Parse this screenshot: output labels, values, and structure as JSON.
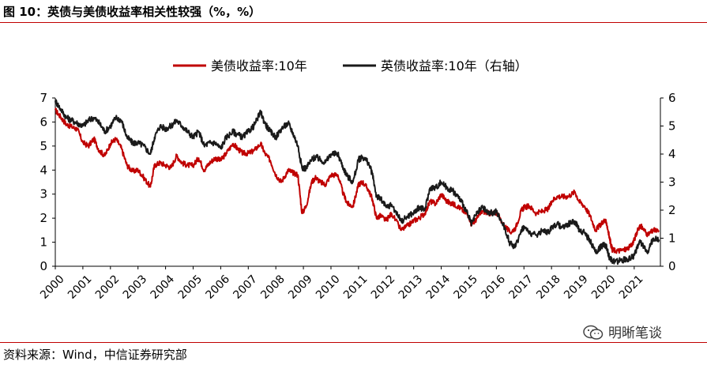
{
  "figure": {
    "title": "图 10：英债与美债收益率相关性较强（%，%）",
    "source": "资料来源：Wind，中信证券研究部",
    "watermark": "明晰笔谈",
    "watermark_icon": "wechat-icon"
  },
  "colors": {
    "us10y": "#c00000",
    "uk10y": "#1a1a1a",
    "rule": "#c00000"
  },
  "chart_data": {
    "type": "line",
    "title": "",
    "xlabel": "",
    "ylabel": "",
    "ylim": [
      0,
      7
    ],
    "y2lim": [
      0,
      6
    ],
    "xlim": [
      2000.0,
      2021.95
    ],
    "y_ticks": [
      0,
      1,
      2,
      3,
      4,
      5,
      6,
      7
    ],
    "y2_ticks": [
      0,
      1,
      2,
      3,
      4,
      5,
      6
    ],
    "x_ticks": [
      "2000",
      "2001",
      "2002",
      "2003",
      "2004",
      "2005",
      "2006",
      "2007",
      "2008",
      "2009",
      "2010",
      "2011",
      "2012",
      "2013",
      "2014",
      "2015",
      "2016",
      "2017",
      "2018",
      "2019",
      "2020",
      "2021"
    ],
    "legend": "top-center",
    "grid": false,
    "series": [
      {
        "name": "美债收益率:10年",
        "axis": "left",
        "x": [
          2000.0,
          2000.2,
          2000.4,
          2000.6,
          2000.8,
          2001.0,
          2001.2,
          2001.4,
          2001.6,
          2001.8,
          2002.0,
          2002.2,
          2002.4,
          2002.6,
          2002.8,
          2003.0,
          2003.2,
          2003.45,
          2003.6,
          2003.8,
          2004.0,
          2004.2,
          2004.4,
          2004.6,
          2004.8,
          2005.0,
          2005.2,
          2005.4,
          2005.6,
          2005.8,
          2006.0,
          2006.2,
          2006.45,
          2006.6,
          2006.8,
          2007.0,
          2007.2,
          2007.45,
          2007.6,
          2007.8,
          2008.0,
          2008.2,
          2008.45,
          2008.6,
          2008.8,
          2008.95,
          2009.1,
          2009.3,
          2009.45,
          2009.6,
          2009.8,
          2010.0,
          2010.25,
          2010.45,
          2010.6,
          2010.8,
          2011.0,
          2011.15,
          2011.35,
          2011.5,
          2011.65,
          2011.8,
          2012.0,
          2012.2,
          2012.55,
          2012.8,
          2013.0,
          2013.2,
          2013.4,
          2013.6,
          2013.8,
          2014.0,
          2014.2,
          2014.4,
          2014.6,
          2014.8,
          2015.0,
          2015.1,
          2015.3,
          2015.5,
          2015.7,
          2015.9,
          2016.0,
          2016.25,
          2016.5,
          2016.7,
          2016.9,
          2017.0,
          2017.2,
          2017.45,
          2017.7,
          2017.9,
          2018.0,
          2018.2,
          2018.4,
          2018.6,
          2018.85,
          2019.0,
          2019.2,
          2019.4,
          2019.6,
          2019.75,
          2019.9,
          2020.0,
          2020.1,
          2020.2,
          2020.3,
          2020.5,
          2020.7,
          2020.9,
          2021.0,
          2021.2,
          2021.3,
          2021.5,
          2021.7,
          2021.9
        ],
        "y": [
          6.5,
          6.2,
          5.9,
          5.8,
          5.7,
          5.15,
          5.0,
          5.3,
          4.8,
          4.6,
          5.1,
          5.3,
          4.9,
          4.2,
          3.95,
          4.0,
          3.7,
          3.3,
          4.2,
          4.3,
          4.2,
          4.1,
          4.6,
          4.3,
          4.2,
          4.2,
          4.5,
          4.0,
          4.3,
          4.5,
          4.4,
          4.7,
          5.1,
          4.9,
          4.7,
          4.7,
          4.8,
          5.1,
          4.7,
          4.4,
          3.8,
          3.5,
          4.0,
          3.9,
          3.8,
          2.2,
          2.5,
          3.5,
          3.7,
          3.5,
          3.4,
          3.8,
          3.8,
          3.0,
          2.6,
          2.5,
          3.4,
          3.5,
          3.2,
          2.8,
          2.0,
          2.1,
          1.9,
          2.2,
          1.5,
          1.7,
          1.9,
          2.0,
          2.2,
          2.7,
          2.6,
          3.0,
          2.7,
          2.6,
          2.5,
          2.3,
          2.1,
          1.7,
          2.0,
          2.3,
          2.2,
          2.2,
          2.25,
          1.75,
          1.4,
          1.6,
          2.3,
          2.45,
          2.5,
          2.2,
          2.3,
          2.4,
          2.7,
          2.9,
          2.9,
          2.9,
          3.1,
          2.7,
          2.5,
          2.1,
          1.5,
          1.7,
          1.9,
          1.8,
          1.2,
          0.7,
          0.65,
          0.65,
          0.7,
          0.85,
          1.1,
          1.7,
          1.6,
          1.3,
          1.5,
          1.45
        ]
      },
      {
        "name": "英债收益率:10年（右轴）",
        "axis": "right",
        "x": [
          2000.0,
          2000.2,
          2000.4,
          2000.6,
          2000.8,
          2001.0,
          2001.2,
          2001.4,
          2001.6,
          2001.8,
          2002.0,
          2002.2,
          2002.4,
          2002.6,
          2002.8,
          2003.0,
          2003.2,
          2003.45,
          2003.6,
          2003.8,
          2004.0,
          2004.2,
          2004.4,
          2004.6,
          2004.8,
          2005.0,
          2005.2,
          2005.4,
          2005.6,
          2005.8,
          2006.0,
          2006.2,
          2006.45,
          2006.6,
          2006.8,
          2007.0,
          2007.2,
          2007.45,
          2007.6,
          2007.8,
          2008.0,
          2008.2,
          2008.45,
          2008.6,
          2008.8,
          2008.95,
          2009.1,
          2009.3,
          2009.45,
          2009.6,
          2009.8,
          2010.0,
          2010.25,
          2010.45,
          2010.6,
          2010.8,
          2011.0,
          2011.15,
          2011.35,
          2011.5,
          2011.65,
          2011.8,
          2012.0,
          2012.2,
          2012.55,
          2012.8,
          2013.0,
          2013.2,
          2013.4,
          2013.6,
          2013.8,
          2014.0,
          2014.2,
          2014.4,
          2014.6,
          2014.8,
          2015.0,
          2015.1,
          2015.3,
          2015.5,
          2015.7,
          2015.9,
          2016.0,
          2016.25,
          2016.5,
          2016.7,
          2016.9,
          2017.0,
          2017.2,
          2017.45,
          2017.7,
          2017.9,
          2018.0,
          2018.2,
          2018.4,
          2018.6,
          2018.85,
          2019.0,
          2019.2,
          2019.4,
          2019.6,
          2019.75,
          2019.9,
          2020.0,
          2020.1,
          2020.2,
          2020.3,
          2020.5,
          2020.7,
          2020.9,
          2021.0,
          2021.2,
          2021.3,
          2021.5,
          2021.7,
          2021.9
        ],
        "y": [
          5.9,
          5.6,
          5.3,
          5.2,
          5.1,
          5.0,
          5.2,
          5.3,
          5.1,
          4.8,
          5.0,
          5.3,
          5.2,
          4.6,
          4.4,
          4.4,
          4.3,
          4.0,
          4.6,
          5.0,
          4.9,
          5.0,
          5.2,
          5.0,
          4.8,
          4.6,
          4.8,
          4.3,
          4.4,
          4.4,
          4.2,
          4.6,
          4.8,
          4.7,
          4.6,
          4.8,
          5.0,
          5.5,
          5.1,
          4.8,
          4.6,
          4.9,
          5.1,
          4.8,
          4.3,
          3.5,
          3.5,
          3.8,
          3.9,
          3.8,
          3.7,
          4.0,
          4.0,
          3.5,
          3.2,
          3.0,
          3.8,
          3.9,
          3.7,
          3.3,
          2.5,
          2.4,
          2.1,
          2.2,
          1.6,
          1.8,
          1.9,
          2.1,
          2.0,
          2.8,
          2.8,
          3.0,
          2.8,
          2.7,
          2.5,
          2.2,
          1.75,
          1.5,
          1.9,
          2.1,
          1.9,
          1.9,
          1.95,
          1.5,
          0.8,
          0.7,
          1.3,
          1.4,
          1.2,
          1.1,
          1.3,
          1.2,
          1.4,
          1.5,
          1.4,
          1.5,
          1.6,
          1.3,
          1.2,
          0.9,
          0.5,
          0.65,
          0.8,
          0.7,
          0.3,
          0.2,
          0.15,
          0.2,
          0.25,
          0.3,
          0.4,
          0.85,
          0.75,
          0.55,
          1.0,
          0.95
        ]
      }
    ]
  }
}
